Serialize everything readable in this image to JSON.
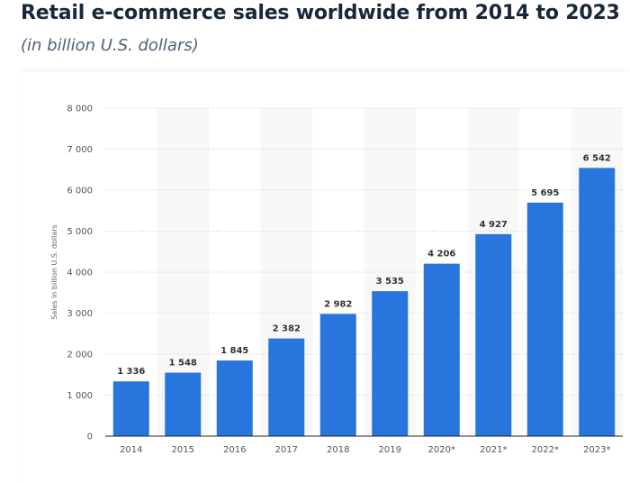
{
  "chart_data": {
    "type": "bar",
    "title": "Retail e-commerce sales worldwide from 2014 to 2023",
    "subtitle": "(in billion U.S. dollars)",
    "xlabel": "",
    "ylabel": "Sales in billion U.S. dollars",
    "categories": [
      "2014",
      "2015",
      "2016",
      "2017",
      "2018",
      "2019",
      "2020*",
      "2021*",
      "2022*",
      "2023*"
    ],
    "values": [
      1336,
      1548,
      1845,
      2382,
      2982,
      3535,
      4206,
      4927,
      5695,
      6542
    ],
    "data_labels": [
      "1 336",
      "1 548",
      "1 845",
      "2 382",
      "2 982",
      "3 535",
      "4 206",
      "4 927",
      "5 695",
      "6 542"
    ],
    "ylim": [
      0,
      8000
    ],
    "yticks": [
      0,
      1000,
      2000,
      3000,
      4000,
      5000,
      6000,
      7000,
      8000
    ],
    "ytick_labels": [
      "0",
      "1 000",
      "2 000",
      "3 000",
      "4 000",
      "5 000",
      "6 000",
      "7 000",
      "8 000"
    ],
    "grid": true,
    "bar_color": "#2876dd",
    "band_color": "#f8f8f8"
  }
}
